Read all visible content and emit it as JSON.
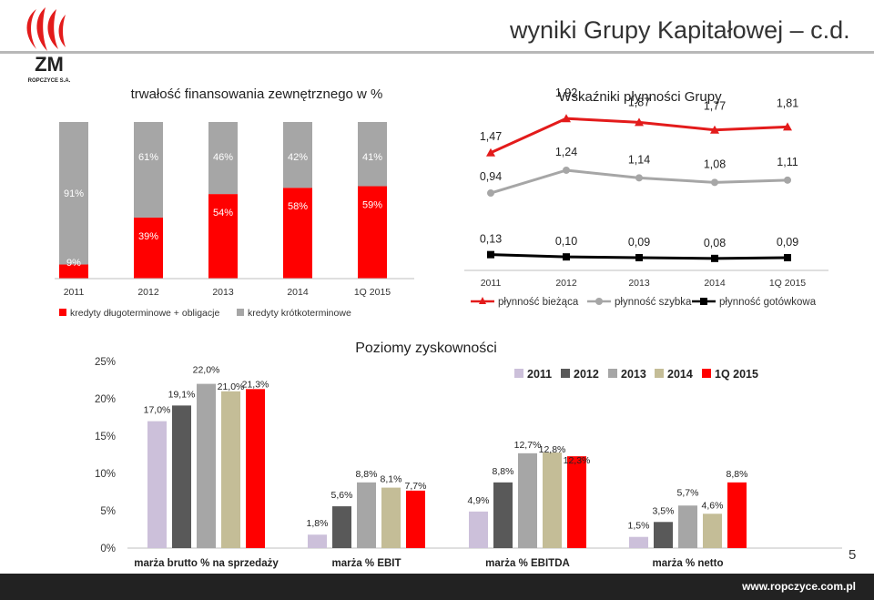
{
  "header": {
    "title": "wyniki Grupy Kapitałowej – c.d.",
    "logo_text": "ZM",
    "logo_subtext": "ROPCZYCE S.A.",
    "footer_url": "www.ropczyce.com.pl",
    "page_number": "5"
  },
  "colors": {
    "red": "#ff0000",
    "gray": "#a6a6a6",
    "dark_red": "#c00000",
    "lavender": "#ccc0da",
    "dark_gray": "#595959",
    "silver": "#a6a6a6",
    "tan": "#c4bd97",
    "black": "#000000",
    "line_red": "#e31b1b",
    "line_gray": "#a6a6a6"
  },
  "chart_data": [
    {
      "type": "bar",
      "stacked": true,
      "title": "trwałość finansowania zewnętrznego w %",
      "categories": [
        "2011",
        "2012",
        "2013",
        "2014",
        "1Q 2015"
      ],
      "series": [
        {
          "name": "kredyty długoterminowe + obligacje",
          "values": [
            9,
            39,
            54,
            58,
            59
          ],
          "labels": [
            "9%",
            "39%",
            "54%",
            "58%",
            "59%"
          ]
        },
        {
          "name": "kredyty krótkoterminowe",
          "values": [
            91,
            61,
            46,
            42,
            41
          ],
          "labels": [
            "91%",
            "61%",
            "46%",
            "42%",
            "41%"
          ]
        }
      ],
      "ylim": [
        0,
        100
      ],
      "legend": "bottom"
    },
    {
      "type": "line",
      "title": "Wskaźniki płynności Grupy",
      "categories": [
        "2011",
        "2012",
        "2013",
        "2014",
        "1Q 2015"
      ],
      "series": [
        {
          "name": "płynność bieżąca",
          "values": [
            1.47,
            1.92,
            1.87,
            1.77,
            1.81
          ],
          "labels": [
            "1,47",
            "1,92",
            "1,87",
            "1,77",
            "1,81"
          ]
        },
        {
          "name": "płynność szybka",
          "values": [
            0.94,
            1.24,
            1.14,
            1.08,
            1.11
          ],
          "labels": [
            "0,94",
            "1,24",
            "1,14",
            "1,08",
            "1,11"
          ]
        },
        {
          "name": "płynność gotówkowa",
          "values": [
            0.13,
            0.1,
            0.09,
            0.08,
            0.09
          ],
          "labels": [
            "0,13",
            "0,10",
            "0,09",
            "0,08",
            "0,09"
          ]
        }
      ],
      "legend": "bottom"
    },
    {
      "type": "bar",
      "title": "Poziomy zyskowności",
      "categories": [
        "marża brutto % na sprzedaży",
        "marża % EBIT",
        "marża % EBITDA",
        "marża % netto"
      ],
      "series": [
        {
          "name": "2011",
          "values": [
            17.0,
            1.8,
            4.9,
            1.5
          ],
          "labels": [
            "17,0%",
            "1,8%",
            "4,9%",
            "1,5%"
          ]
        },
        {
          "name": "2012",
          "values": [
            19.1,
            5.6,
            8.8,
            3.5
          ],
          "labels": [
            "19,1%",
            "5,6%",
            "8,8%",
            "3,5%"
          ]
        },
        {
          "name": "2013",
          "values": [
            22.0,
            8.8,
            12.7,
            5.7
          ],
          "labels": [
            "22,0%",
            "8,8%",
            "12,7%",
            "5,7%"
          ]
        },
        {
          "name": "2014",
          "values": [
            21.0,
            8.1,
            12.8,
            4.6
          ],
          "labels": [
            "21,0%",
            "8,1%",
            "12,8%",
            "4,6%"
          ]
        },
        {
          "name": "1Q 2015",
          "values": [
            21.3,
            7.7,
            12.3,
            8.8
          ],
          "labels": [
            "21,3%",
            "7,7%",
            "12,3%",
            "8,8%"
          ]
        }
      ],
      "y_ticks": [
        "0%",
        "5%",
        "10%",
        "15%",
        "20%",
        "25%"
      ],
      "ylim": [
        0,
        25
      ],
      "legend": "top-right"
    }
  ]
}
